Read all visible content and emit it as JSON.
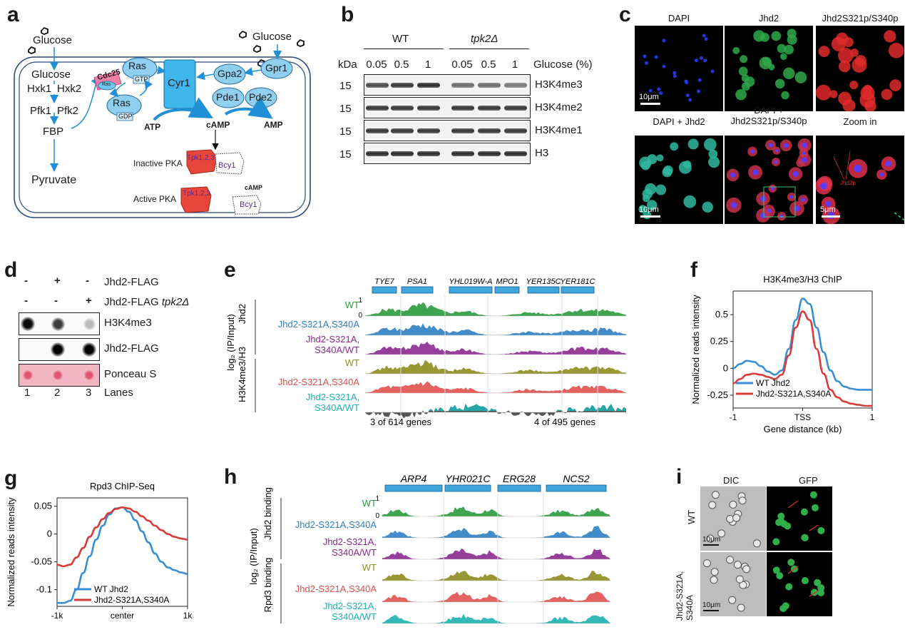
{
  "panels": {
    "a": {
      "label": "a",
      "glucose_left": "Glucose",
      "glucose_right": "Glucose",
      "glucose_inside": "Glucose",
      "hxk1": "Hxk1",
      "hxk2": "Hxk2",
      "pfk1": "Pfk1",
      "pfk2": "Pfk2",
      "fbp": "FBP",
      "pyruvate": "Pyruvate",
      "cdc25": "Cdc25",
      "cdc25_sub": "Ras",
      "ras_gtp": "Ras",
      "gtp": "GTP",
      "ras_gdp": "Ras",
      "gdp": "GDP",
      "cyr1": "Cyr1",
      "gpa2": "Gpa2",
      "gpr1": "Gpr1",
      "pde1": "Pde1",
      "pde2": "Pde2",
      "atp": "ATP",
      "camp": "cAMP",
      "amp": "AMP",
      "inactive_pka": "Inactive PKA",
      "active_pka": "Active PKA",
      "tpk": "Tpk1,2,3",
      "bcy1": "Bcy1",
      "camp_small": "cAMP"
    },
    "b": {
      "label": "b",
      "wt": "WT",
      "mutant": "tpk2Δ",
      "kda": "kDa",
      "glucose_label": "Glucose (%)",
      "concentrations": [
        "0.05",
        "0.5",
        "1",
        "0.05",
        "0.5",
        "1"
      ],
      "rows": [
        {
          "mw": "15",
          "name": "H3K4me3",
          "intensity": [
            0.75,
            0.85,
            0.9,
            0.6,
            0.6,
            0.55
          ]
        },
        {
          "mw": "15",
          "name": "H3K4me2",
          "intensity": [
            0.85,
            0.85,
            0.85,
            0.85,
            0.85,
            0.85
          ]
        },
        {
          "mw": "15",
          "name": "H3K4me1",
          "intensity": [
            0.85,
            0.85,
            0.85,
            0.85,
            0.85,
            0.85
          ]
        },
        {
          "mw": "15",
          "name": "H3",
          "intensity": [
            0.9,
            0.9,
            0.9,
            0.9,
            0.9,
            0.9
          ]
        }
      ]
    },
    "c": {
      "label": "c",
      "images": [
        {
          "title": "DAPI",
          "scale": "10μm",
          "tint": "blue"
        },
        {
          "title": "Jhd2",
          "scale": "",
          "tint": "green"
        },
        {
          "title": "Jhd2S321p/S340p",
          "scale": "",
          "tint": "red"
        },
        {
          "title": "DAPI + Jhd2",
          "scale": "10μm",
          "tint": "cyan"
        },
        {
          "title": "DAPI + Jhd2S321p/S340p",
          "scale": "",
          "tint": "merge"
        },
        {
          "title": "Zoom in",
          "scale": "5μm",
          "tint": "zoom"
        }
      ],
      "zoom_annotation": "Jhd2p"
    },
    "d": {
      "label": "d",
      "row1_marks": [
        "-",
        "+",
        "-"
      ],
      "row1_label": "Jhd2-FLAG",
      "row2_marks": [
        "-",
        "-",
        "+"
      ],
      "row2_label": "Jhd2-FLAG",
      "row2_label_italic": "tpk2Δ",
      "blots": [
        {
          "name": "H3K4me3",
          "intensity": [
            0.95,
            0.75,
            0.25
          ]
        },
        {
          "name": "Jhd2-FLAG",
          "intensity": [
            0.0,
            1.0,
            1.0
          ]
        },
        {
          "name": "Ponceau S",
          "intensity": [
            0.8,
            0.8,
            0.8
          ]
        }
      ],
      "lanes_label": "Lanes",
      "lanes": [
        "1",
        "2",
        "3"
      ]
    },
    "e": {
      "label": "e",
      "ylabel": "log₂ (IP/Input)",
      "group1": "Jhd2",
      "group2": "H3K4me3/H3",
      "tracks": [
        {
          "name": "WT",
          "color": "#2a9a3c"
        },
        {
          "name": "Jhd2-S321A,S340A",
          "color": "#2f7fc4"
        },
        {
          "name": "Jhd2-S321A,\nS340A/WT",
          "color": "#8a2a8f"
        },
        {
          "name": "WT",
          "color": "#8d8c1e"
        },
        {
          "name": "Jhd2-S321A,S340A",
          "color": "#e0504e"
        },
        {
          "name": "Jhd2-S321A,\nS340A/WT",
          "color": "#1fb0b0"
        }
      ],
      "genes": [
        "TYE7",
        "PSA1",
        "YHL019W-A",
        "MPO1",
        "YER135C",
        "YER181C"
      ],
      "scale_top": "1",
      "scale_bottom": "0",
      "footer_left": "3 of 614 genes",
      "footer_right": "4 of 495 genes"
    },
    "f": {
      "label": "f",
      "chart_data": {
        "type": "line",
        "title": "H3K4me3/H3 ChIP",
        "xlabel": "Gene distance (kb)",
        "ylabel": "Normalized reads intensity",
        "xticks": [
          "-1",
          "TSS",
          "1"
        ],
        "yticks": [
          "0.5",
          "0.25",
          "0",
          "-0.25"
        ],
        "xlim": [
          -1,
          1
        ],
        "ylim": [
          -0.37,
          0.72
        ],
        "legend": "bottom-right",
        "x": [
          -1.0,
          -0.9,
          -0.8,
          -0.7,
          -0.6,
          -0.5,
          -0.4,
          -0.3,
          -0.2,
          -0.1,
          0.0,
          0.1,
          0.2,
          0.3,
          0.4,
          0.5,
          0.6,
          0.7,
          0.8,
          0.9,
          1.0
        ],
        "series": [
          {
            "name": "WT Jhd2",
            "color": "#3a8fd4",
            "values": [
              0.0,
              0.04,
              0.07,
              0.06,
              0.02,
              -0.03,
              -0.06,
              -0.02,
              0.18,
              0.45,
              0.65,
              0.6,
              0.38,
              0.15,
              -0.02,
              -0.12,
              -0.17,
              -0.19,
              -0.2,
              -0.2,
              -0.2
            ]
          },
          {
            "name": "Jhd2-S321A,S340A",
            "color": "#d93a3a",
            "values": [
              -0.14,
              -0.1,
              -0.06,
              -0.05,
              -0.06,
              -0.08,
              -0.1,
              -0.06,
              0.12,
              0.38,
              0.53,
              0.45,
              0.18,
              -0.05,
              -0.2,
              -0.27,
              -0.31,
              -0.33,
              -0.34,
              -0.35,
              -0.35
            ]
          }
        ]
      }
    },
    "g": {
      "label": "g",
      "chart_data": {
        "type": "line",
        "title": "Rpd3 ChIP-Seq",
        "xlabel": "",
        "ylabel": "Normalized reads intensity",
        "xticks": [
          "-1k",
          "center",
          "1k"
        ],
        "yticks": [
          "0.05",
          "0",
          "-0.05",
          "-0.1"
        ],
        "xlim": [
          -1,
          1
        ],
        "ylim": [
          -0.13,
          0.065
        ],
        "legend": "bottom-center",
        "x": [
          -1.0,
          -0.9,
          -0.8,
          -0.7,
          -0.6,
          -0.5,
          -0.4,
          -0.3,
          -0.2,
          -0.1,
          0.0,
          0.1,
          0.2,
          0.3,
          0.4,
          0.5,
          0.6,
          0.7,
          0.8,
          0.9,
          1.0
        ],
        "series": [
          {
            "name": "WT Jhd2",
            "color": "#3a8fd4",
            "values": [
              -0.124,
              -0.124,
              -0.12,
              -0.1,
              -0.07,
              -0.04,
              -0.01,
              0.015,
              0.035,
              0.046,
              0.048,
              0.04,
              0.025,
              0.005,
              -0.015,
              -0.035,
              -0.05,
              -0.06,
              -0.065,
              -0.069,
              -0.072
            ]
          },
          {
            "name": "Jhd2-S321A,S340A",
            "color": "#d93a3a",
            "values": [
              -0.055,
              -0.058,
              -0.055,
              -0.042,
              -0.025,
              -0.005,
              0.012,
              0.027,
              0.038,
              0.045,
              0.048,
              0.046,
              0.04,
              0.032,
              0.024,
              0.015,
              0.007,
              0.0,
              -0.005,
              -0.008,
              -0.01
            ]
          }
        ]
      }
    },
    "h": {
      "label": "h",
      "ylabel": "log₂ (IP/Input)",
      "group1": "Jhd2 binding",
      "group2": "Rpd3 binding",
      "tracks": [
        {
          "name": "WT",
          "color": "#2a9a3c"
        },
        {
          "name": "Jhd2-S321A,S340A",
          "color": "#2f7fc4"
        },
        {
          "name": "Jhd2-S321A,\nS340A/WT",
          "color": "#8a2a8f"
        },
        {
          "name": "WT",
          "color": "#8d8c1e"
        },
        {
          "name": "Jhd2-S321A,S340A",
          "color": "#e0504e"
        },
        {
          "name": "Jhd2-S321A,\nS340A/WT",
          "color": "#1fb0b0"
        }
      ],
      "genes": [
        "ARP4",
        "YHR021C",
        "ERG28",
        "NCS2"
      ],
      "scale_top": "1",
      "scale_bottom": "0"
    },
    "i": {
      "label": "i",
      "col_dic": "DIC",
      "col_gfp": "GFP",
      "row_wt": "WT",
      "row_mut": "Jhd2-S321A,\nS340A",
      "scale": "10μm"
    }
  }
}
